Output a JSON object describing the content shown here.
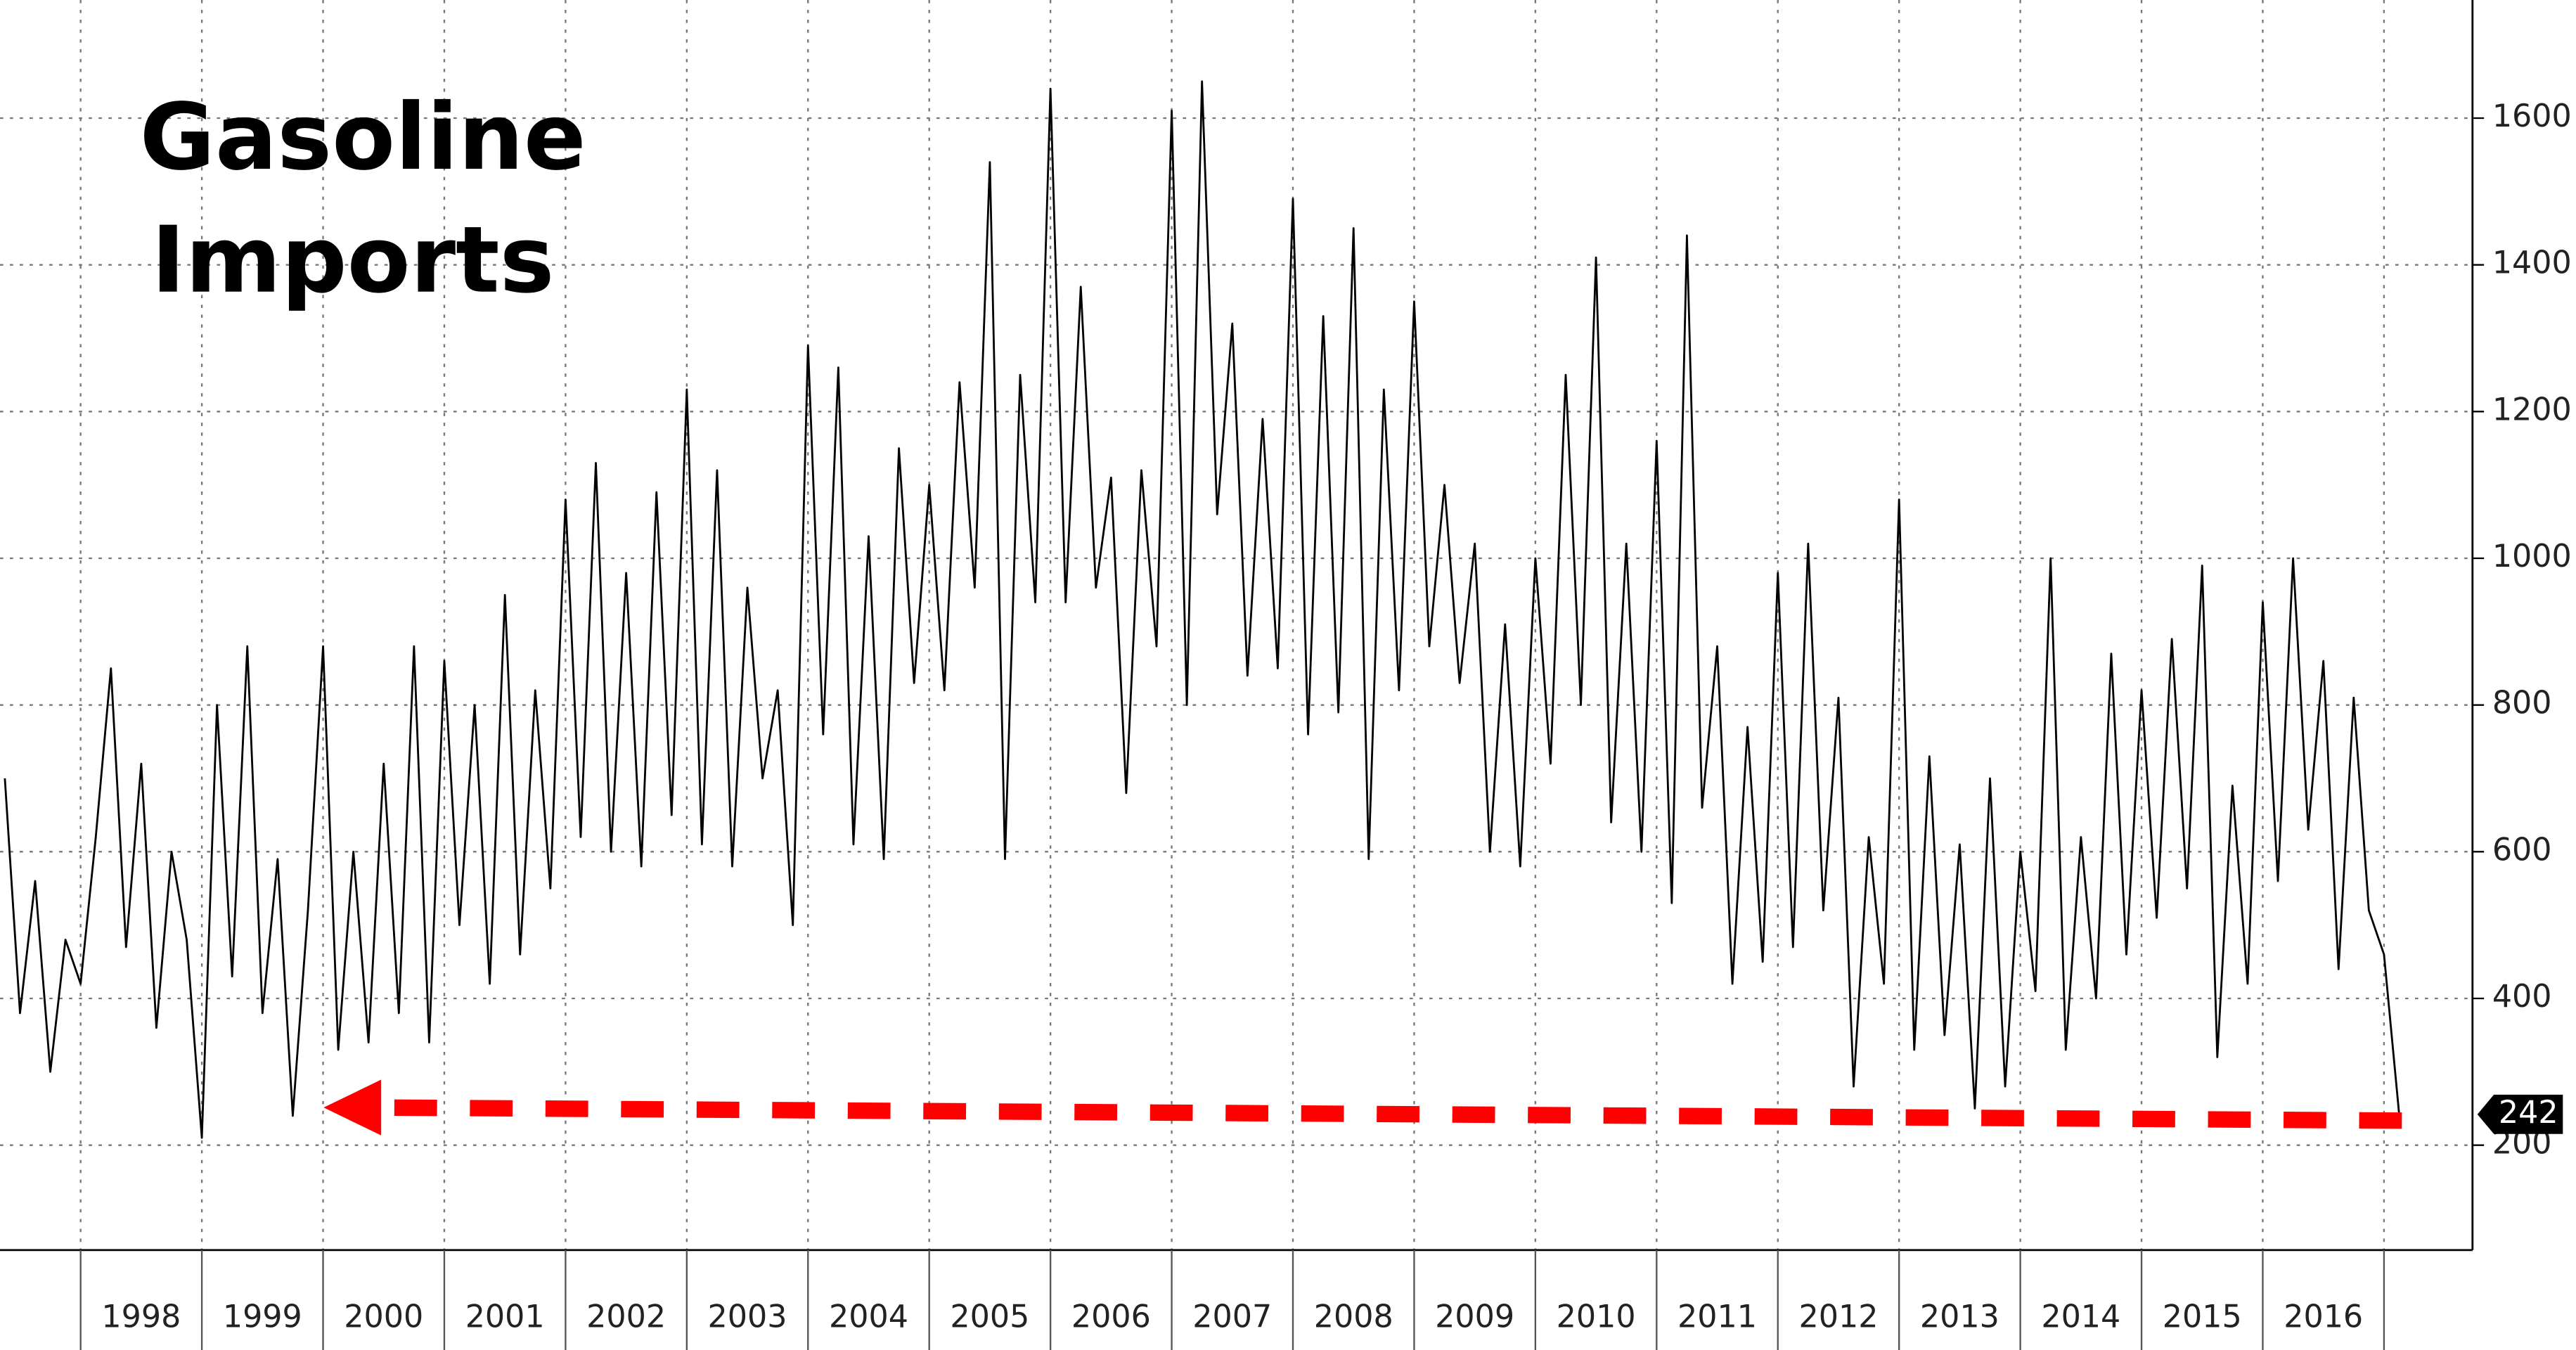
{
  "chart_data": {
    "type": "line",
    "title": [
      "Gasoline",
      "Imports"
    ],
    "x": [
      1997.375,
      1997.5,
      1997.625,
      1997.75,
      1997.875,
      1998,
      1998.125,
      1998.25,
      1998.375,
      1998.5,
      1998.625,
      1998.75,
      1998.875,
      1999,
      1999.125,
      1999.25,
      1999.375,
      1999.5,
      1999.625,
      1999.75,
      1999.875,
      2000,
      2000.125,
      2000.25,
      2000.375,
      2000.5,
      2000.625,
      2000.75,
      2000.875,
      2001,
      2001.125,
      2001.25,
      2001.375,
      2001.5,
      2001.625,
      2001.75,
      2001.875,
      2002,
      2002.125,
      2002.25,
      2002.375,
      2002.5,
      2002.625,
      2002.75,
      2002.875,
      2003,
      2003.125,
      2003.25,
      2003.375,
      2003.5,
      2003.625,
      2003.75,
      2003.875,
      2004,
      2004.125,
      2004.25,
      2004.375,
      2004.5,
      2004.625,
      2004.75,
      2004.875,
      2005,
      2005.125,
      2005.25,
      2005.375,
      2005.5,
      2005.625,
      2005.75,
      2005.875,
      2006,
      2006.125,
      2006.25,
      2006.375,
      2006.5,
      2006.625,
      2006.75,
      2006.875,
      2007,
      2007.125,
      2007.25,
      2007.375,
      2007.5,
      2007.625,
      2007.75,
      2007.875,
      2008,
      2008.125,
      2008.25,
      2008.375,
      2008.5,
      2008.625,
      2008.75,
      2008.875,
      2009,
      2009.125,
      2009.25,
      2009.375,
      2009.5,
      2009.625,
      2009.75,
      2009.875,
      2010,
      2010.125,
      2010.25,
      2010.375,
      2010.5,
      2010.625,
      2010.75,
      2010.875,
      2011,
      2011.125,
      2011.25,
      2011.375,
      2011.5,
      2011.625,
      2011.75,
      2011.875,
      2012,
      2012.125,
      2012.25,
      2012.375,
      2012.5,
      2012.625,
      2012.75,
      2012.875,
      2013,
      2013.125,
      2013.25,
      2013.375,
      2013.5,
      2013.625,
      2013.75,
      2013.875,
      2014,
      2014.125,
      2014.25,
      2014.375,
      2014.5,
      2014.625,
      2014.75,
      2014.875,
      2015,
      2015.125,
      2015.25,
      2015.375,
      2015.5,
      2015.625,
      2015.75,
      2015.875,
      2016,
      2016.125,
      2016.25,
      2016.375,
      2016.5,
      2016.625,
      2016.75,
      2016.875,
      2017,
      2017.125
    ],
    "values": [
      700,
      380,
      560,
      300,
      480,
      420,
      620,
      850,
      470,
      720,
      360,
      600,
      480,
      210,
      800,
      430,
      880,
      380,
      590,
      240,
      520,
      880,
      330,
      600,
      340,
      720,
      380,
      880,
      340,
      860,
      500,
      800,
      420,
      950,
      460,
      820,
      550,
      1080,
      620,
      1130,
      600,
      980,
      580,
      1090,
      650,
      1230,
      610,
      1120,
      580,
      960,
      700,
      820,
      500,
      1290,
      760,
      1260,
      610,
      1030,
      590,
      1150,
      830,
      1100,
      820,
      1240,
      960,
      1540,
      590,
      1250,
      940,
      1640,
      940,
      1370,
      960,
      1110,
      680,
      1120,
      880,
      1610,
      800,
      1650,
      1060,
      1320,
      840,
      1190,
      850,
      1490,
      760,
      1330,
      790,
      1450,
      590,
      1230,
      820,
      1350,
      880,
      1100,
      830,
      1020,
      600,
      910,
      580,
      1000,
      720,
      1250,
      800,
      1410,
      640,
      1020,
      600,
      1160,
      530,
      1440,
      660,
      880,
      420,
      770,
      450,
      980,
      470,
      1020,
      520,
      810,
      280,
      620,
      420,
      1080,
      330,
      730,
      350,
      610,
      250,
      700,
      280,
      600,
      410,
      1000,
      330,
      620,
      400,
      870,
      460,
      820,
      510,
      890,
      550,
      990,
      320,
      690,
      420,
      940,
      560,
      1000,
      630,
      860,
      440,
      810,
      520,
      460,
      242
    ],
    "color": "#000000",
    "xlim": [
      1997.335,
      2017.73
    ],
    "xticks": [
      1998,
      1999,
      2000,
      2001,
      2002,
      2003,
      2004,
      2005,
      2006,
      2007,
      2008,
      2009,
      2010,
      2011,
      2012,
      2013,
      2014,
      2015,
      2016
    ],
    "ylim": [
      57,
      1761
    ],
    "yticks": [
      200,
      400,
      600,
      800,
      1000,
      1200,
      1400,
      1600
    ],
    "grid": true
  }
}
